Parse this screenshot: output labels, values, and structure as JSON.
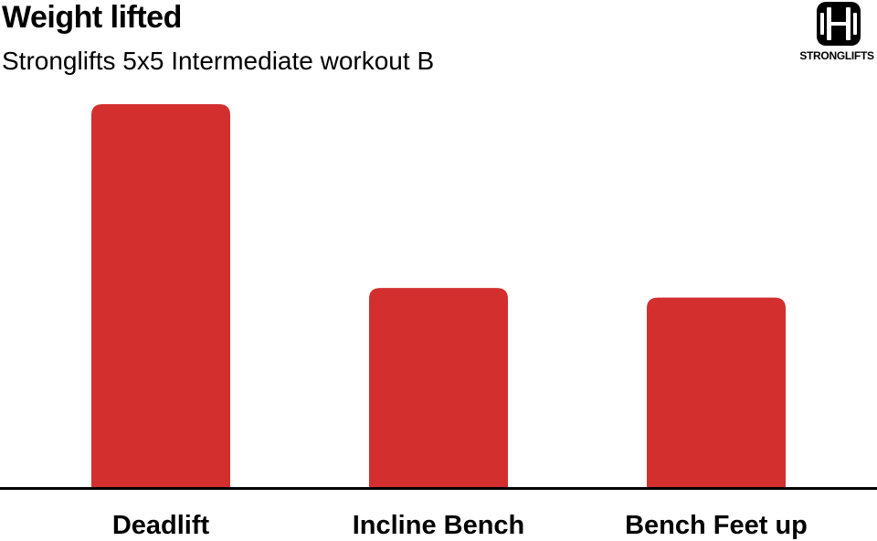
{
  "header": {
    "title": "Weight lifted",
    "subtitle": "Stronglifts 5x5 Intermediate workout B"
  },
  "logo": {
    "text": "STRONGLIFTS",
    "icon": "barbell-icon"
  },
  "colors": {
    "bar": "#d32f2f",
    "axis": "#000000",
    "text": "#000000",
    "background": "#ffffff"
  },
  "chart_data": {
    "type": "bar",
    "title": "Weight lifted",
    "subtitle": "Stronglifts 5x5 Intermediate workout B",
    "categories": [
      "Deadlift",
      "Incline Bench",
      "Bench Feet up"
    ],
    "values": [
      100,
      52,
      49.5
    ],
    "ylim": [
      0,
      100
    ],
    "y_axis_shown": false,
    "grid": false,
    "legend": "none"
  }
}
